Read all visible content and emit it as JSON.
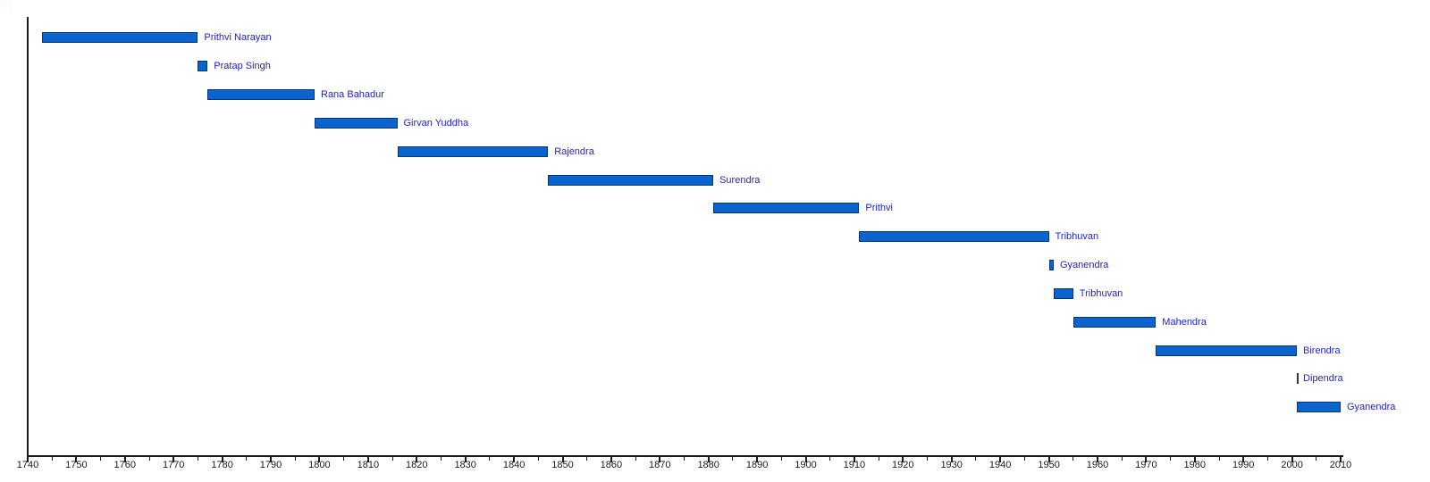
{
  "chart_data": {
    "type": "bar",
    "subtype": "horizontal-timeline",
    "title": "",
    "xlabel": "",
    "ylabel": "",
    "legend": null,
    "grid": false,
    "axis": {
      "min": 1740,
      "max": 2010,
      "major_step": 10,
      "minor_step": 5,
      "tick_labels": [
        "1740",
        "1750",
        "1760",
        "1770",
        "1780",
        "1790",
        "1800",
        "1810",
        "1820",
        "1830",
        "1840",
        "1850",
        "1860",
        "1870",
        "1880",
        "1890",
        "1900",
        "1910",
        "1920",
        "1930",
        "1940",
        "1950",
        "1960",
        "1970",
        "1980",
        "1990",
        "2000",
        "2010"
      ]
    },
    "reigns": [
      {
        "label": "Prithvi Narayan",
        "start": 1743,
        "end": 1775
      },
      {
        "label": "Pratap Singh",
        "start": 1775,
        "end": 1777
      },
      {
        "label": "Rana Bahadur",
        "start": 1777,
        "end": 1799
      },
      {
        "label": "Girvan Yuddha",
        "start": 1799,
        "end": 1816
      },
      {
        "label": "Rajendra",
        "start": 1816,
        "end": 1847
      },
      {
        "label": "Surendra",
        "start": 1847,
        "end": 1881
      },
      {
        "label": "Prithvi",
        "start": 1881,
        "end": 1911
      },
      {
        "label": "Tribhuvan",
        "start": 1911,
        "end": 1950
      },
      {
        "label": "Gyanendra",
        "start": 1950,
        "end": 1951
      },
      {
        "label": "Tribhuvan",
        "start": 1951,
        "end": 1955
      },
      {
        "label": "Mahendra",
        "start": 1955,
        "end": 1972
      },
      {
        "label": "Birendra",
        "start": 1972,
        "end": 2001
      },
      {
        "label": "Dipendra",
        "start": 2001,
        "end": 2001
      },
      {
        "label": "Gyanendra",
        "start": 2001,
        "end": 2010
      }
    ],
    "colors": {
      "bar_fill": "#0b63cc",
      "bar_border": "#05337f",
      "zero_width_marker": "#333333",
      "label_text": "#2222cc",
      "axis": "#1a1a1a",
      "background": "#ffffff"
    }
  }
}
